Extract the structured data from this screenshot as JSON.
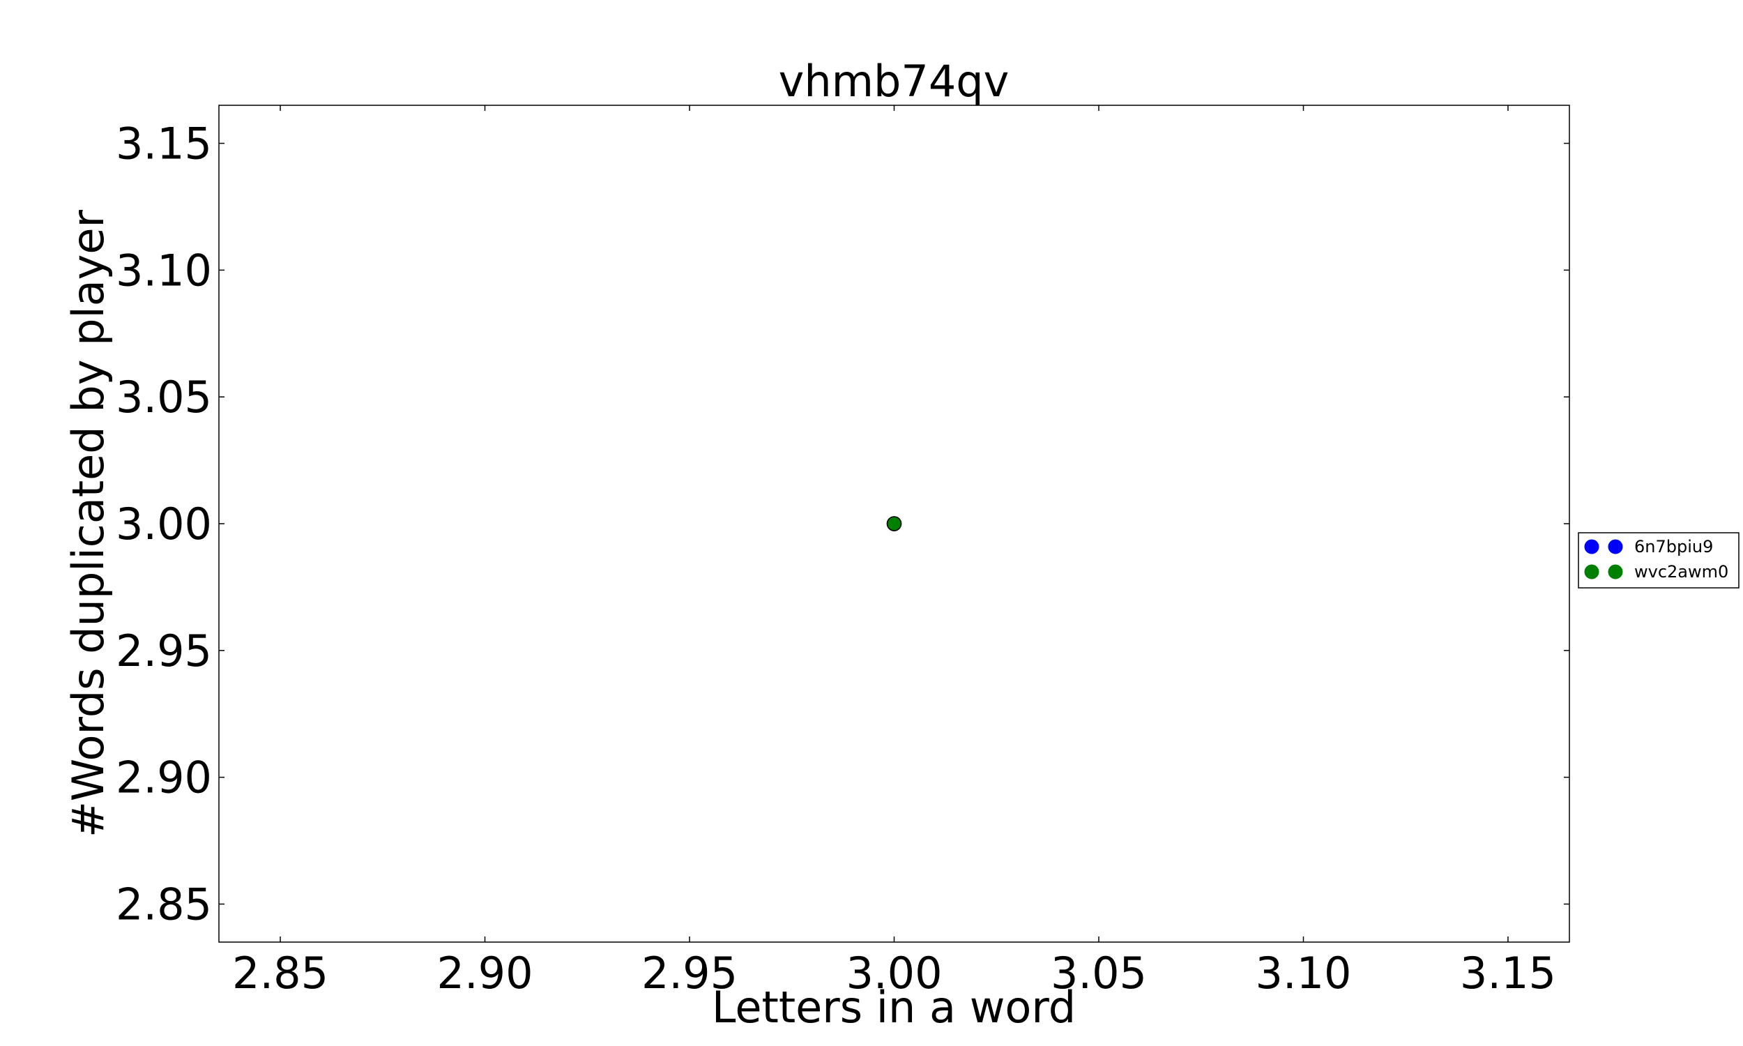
{
  "chart_data": {
    "type": "scatter",
    "title": "vhmb74qv",
    "xlabel": "Letters in a word",
    "ylabel": "#Words duplicated by player",
    "xlim": [
      2.835,
      3.165
    ],
    "ylim": [
      2.835,
      3.165
    ],
    "xticks": [
      2.85,
      2.9,
      2.95,
      3.0,
      3.05,
      3.1,
      3.15
    ],
    "yticks": [
      2.85,
      2.9,
      2.95,
      3.0,
      3.05,
      3.1,
      3.15
    ],
    "xtick_labels": [
      "2.85",
      "2.90",
      "2.95",
      "3.00",
      "3.05",
      "3.10",
      "3.15"
    ],
    "ytick_labels": [
      "2.85",
      "2.90",
      "2.95",
      "3.00",
      "3.05",
      "3.10",
      "3.15"
    ],
    "grid": false,
    "legend_position": "right, outside plot area",
    "series": [
      {
        "name": "6n7bpiu9",
        "color": "#0000ff",
        "points": [
          [
            3.0,
            3.0
          ]
        ]
      },
      {
        "name": "wvc2awm0",
        "color": "#008000",
        "points": [
          [
            3.0,
            3.0
          ]
        ]
      }
    ]
  }
}
